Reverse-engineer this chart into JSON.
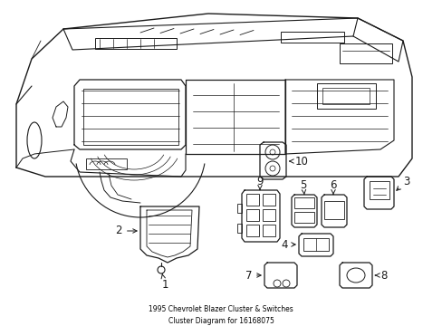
{
  "title": "1995 Chevrolet Blazer Cluster & Switches\nCluster Diagram for 16168075",
  "background_color": "#ffffff",
  "line_color": "#1a1a1a",
  "text_color": "#000000",
  "fig_width": 4.89,
  "fig_height": 3.6,
  "dpi": 100
}
